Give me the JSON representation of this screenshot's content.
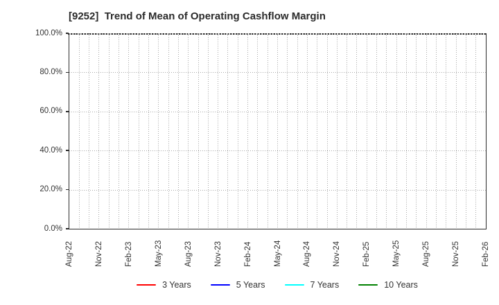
{
  "chart_data": {
    "type": "line",
    "title": "[9252]  Trend of Mean of Operating Cashflow Margin",
    "xlabel": "",
    "ylabel": "",
    "ylim": [
      0,
      100
    ],
    "y_tick_values": [
      0,
      20,
      40,
      60,
      80,
      100
    ],
    "y_tick_labels": [
      "0.0%",
      "20.0%",
      "40.0%",
      "60.0%",
      "80.0%",
      "100.0%"
    ],
    "x_tick_labels": [
      "Aug-22",
      "Nov-22",
      "Feb-23",
      "May-23",
      "Aug-23",
      "Nov-23",
      "Feb-24",
      "May-24",
      "Aug-24",
      "Nov-24",
      "Feb-25",
      "May-25",
      "Aug-25",
      "Nov-25",
      "Feb-26"
    ],
    "x_months_total": 42,
    "x_months_per_tick": 3,
    "grid": true,
    "legend_position": "bottom",
    "series": [
      {
        "name": "3 Years",
        "color": "#ff0000",
        "values": []
      },
      {
        "name": "5 Years",
        "color": "#0000ff",
        "values": []
      },
      {
        "name": "7 Years",
        "color": "#00ffff",
        "values": []
      },
      {
        "name": "10 Years",
        "color": "#008000",
        "values": []
      }
    ]
  },
  "legend": {
    "items": [
      {
        "label": "3 Years",
        "color": "#ff0000"
      },
      {
        "label": "5 Years",
        "color": "#0000ff"
      },
      {
        "label": "7 Years",
        "color": "#00ffff"
      },
      {
        "label": "10 Years",
        "color": "#008000"
      }
    ]
  },
  "colors": {
    "background": "#ffffff",
    "axis": "#2b2b2b",
    "grid": "#a6a6a6",
    "text": "#333333",
    "title": "#2b2b2b"
  }
}
